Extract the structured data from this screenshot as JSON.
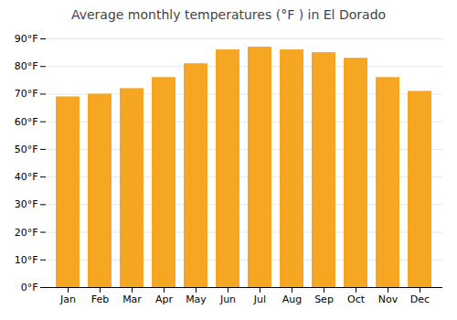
{
  "chart_data": {
    "type": "bar",
    "title": "Average monthly temperatures (°F ) in El Dorado",
    "categories": [
      "Jan",
      "Feb",
      "Mar",
      "Apr",
      "May",
      "Jun",
      "Jul",
      "Aug",
      "Sep",
      "Oct",
      "Nov",
      "Dec"
    ],
    "values": [
      69,
      70,
      72,
      76,
      81,
      86,
      87,
      86,
      85,
      83,
      76,
      71
    ],
    "color": "#F5A623",
    "ylim": [
      0,
      90
    ],
    "yticks": [
      {
        "value": 0,
        "label": "0°F"
      },
      {
        "value": 10,
        "label": "10°F"
      },
      {
        "value": 20,
        "label": "20°F"
      },
      {
        "value": 30,
        "label": "30°F"
      },
      {
        "value": 40,
        "label": "40°F"
      },
      {
        "value": 50,
        "label": "50°F"
      },
      {
        "value": 60,
        "label": "60°F"
      },
      {
        "value": 70,
        "label": "70°F"
      },
      {
        "value": 80,
        "label": "80°F"
      },
      {
        "value": 90,
        "label": "90°F"
      }
    ],
    "grid": true
  }
}
